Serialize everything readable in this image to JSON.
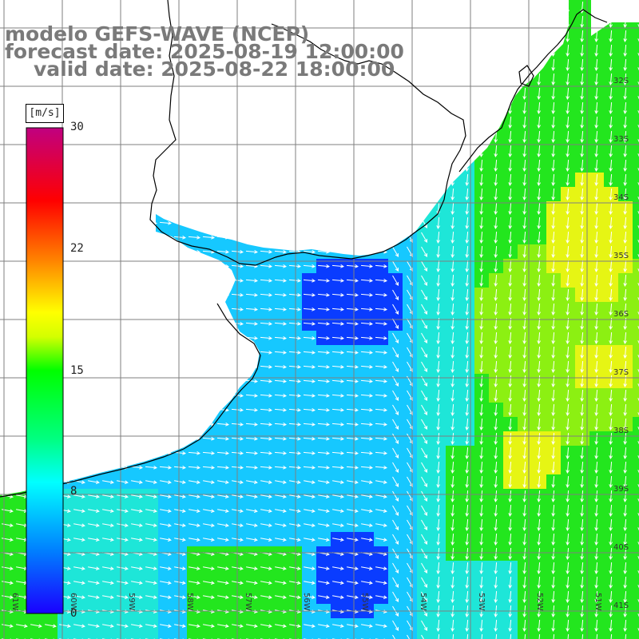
{
  "title": {
    "line1": "modelo GEFS-WAVE (NCEP)",
    "line2": "forecast date: 2025-08-19 12:00:00",
    "line3": "valid date: 2025-08-22 18:00:00"
  },
  "colorbar": {
    "unit": "[m/s]",
    "ticks": [
      "30",
      "22",
      "15",
      "8",
      "0"
    ],
    "tick_values": [
      30,
      22,
      15,
      8,
      0
    ],
    "range": [
      0,
      30
    ]
  },
  "lat_labels": [
    "32S",
    "33S",
    "34S",
    "35S",
    "36S",
    "37S",
    "38S",
    "39S",
    "40S",
    "41S"
  ],
  "lon_labels": [
    "61W",
    "60W",
    "59W",
    "58W",
    "57W",
    "56W",
    "55W",
    "54W",
    "53W",
    "52W",
    "51W"
  ],
  "palette": {
    "blue": "#0a3cff",
    "cyan": "#16c8ff",
    "aqua": "#1ee6d8",
    "green": "#23e61e",
    "lime": "#8cf012",
    "yellow": "#e6f514",
    "land": "#ffffff",
    "coast": "#000000",
    "grid": "#7f7f7f"
  }
}
